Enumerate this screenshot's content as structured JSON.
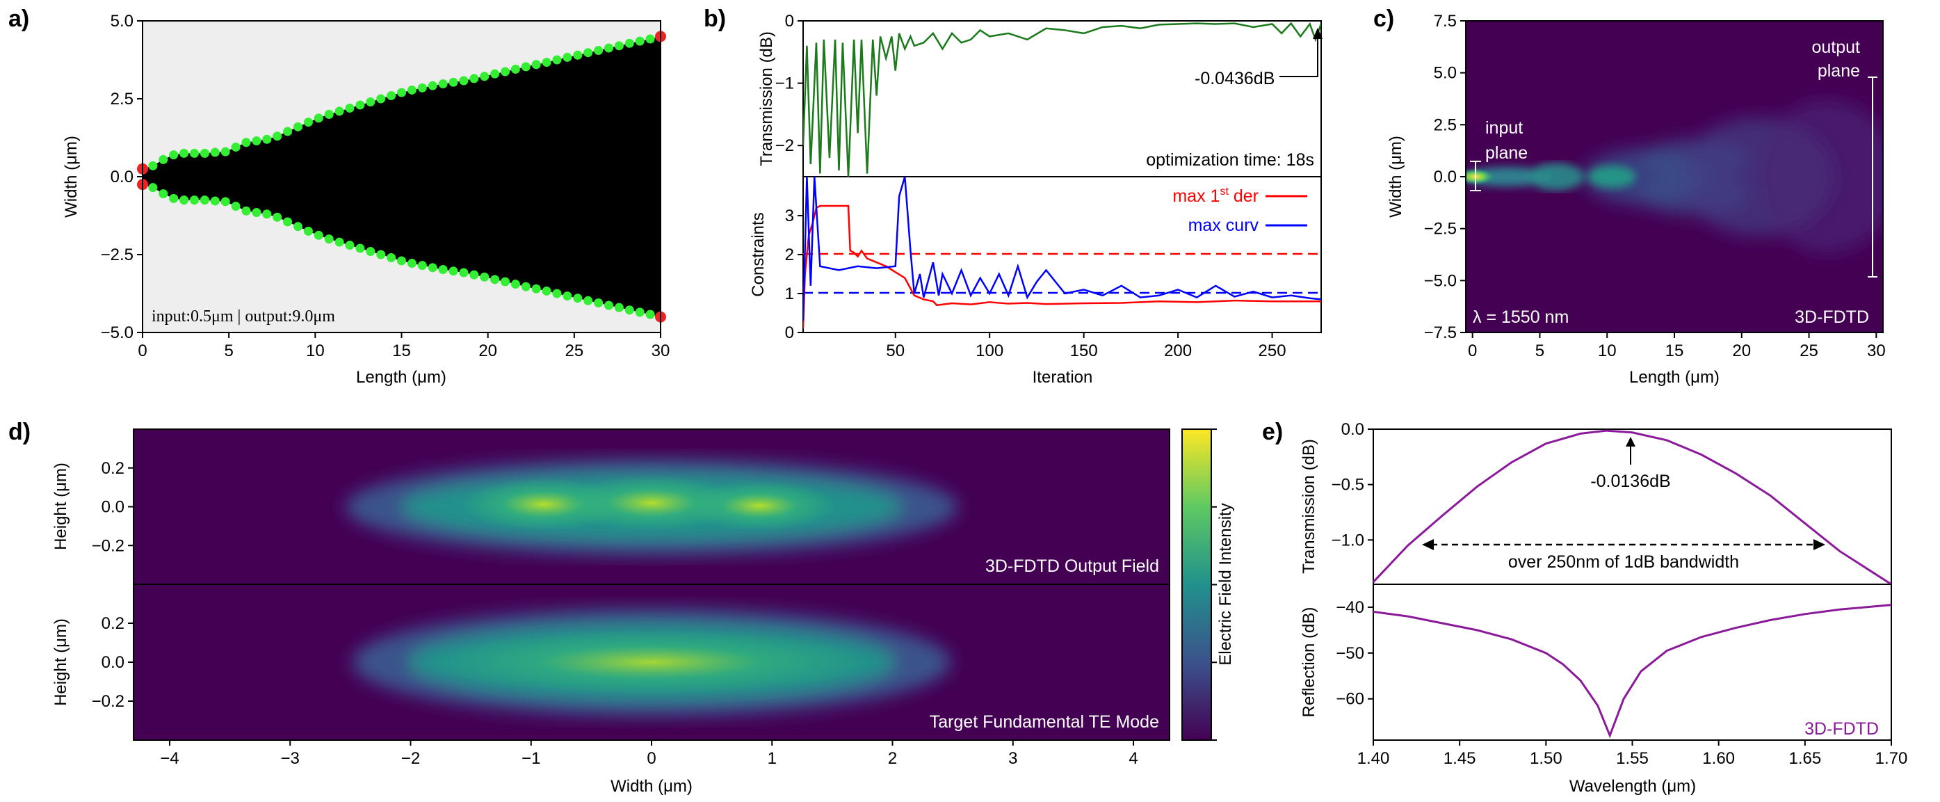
{
  "panels": {
    "a": {
      "letter": "a)",
      "xlabel": "Length (μm)",
      "ylabel": "Width (μm)",
      "xticks": [
        "0",
        "5",
        "10",
        "15",
        "20",
        "25",
        "30"
      ],
      "yticks": [
        "5.0",
        "2.5",
        "0.0",
        "−2.5",
        "−5.0"
      ],
      "annotation": "input:0.5μm | output:9.0μm"
    },
    "b": {
      "letter": "b)",
      "top_ylabel": "Transmission (dB)",
      "top_yticks": [
        "0",
        "−1",
        "−2"
      ],
      "top_annotation": "-0.0436dB",
      "time_label": "optimization time: 18s",
      "bottom_ylabel": "Constraints",
      "bottom_yticks": [
        "3",
        "2",
        "1",
        "0"
      ],
      "legend_der_prefix": "max 1",
      "legend_der_sup": "st",
      "legend_der_suffix": " der",
      "legend_curv": "max curv",
      "xlabel": "Iteration",
      "xticks": [
        "50",
        "100",
        "150",
        "200",
        "250"
      ]
    },
    "c": {
      "letter": "c)",
      "xlabel": "Length (μm)",
      "ylabel": "Width (μm)",
      "xticks": [
        "0",
        "5",
        "10",
        "15",
        "20",
        "25",
        "30"
      ],
      "yticks": [
        "7.5",
        "5.0",
        "2.5",
        "0.0",
        "−2.5",
        "−5.0",
        "−7.5"
      ],
      "input_label_1": "input",
      "input_label_2": "plane",
      "output_label_1": "output",
      "output_label_2": "plane",
      "wavelength_label": "λ = 1550 nm",
      "method_label": "3D-FDTD"
    },
    "d": {
      "letter": "d)",
      "top_label": "3D-FDTD  Output Field",
      "bottom_label": "Target  Fundamental  TE  Mode",
      "ylabel_top": "Height (μm)",
      "ylabel_bottom": "Height (μm)",
      "yticks": [
        "0.2",
        "0.0",
        "−0.2"
      ],
      "xlabel": "Width (μm)",
      "xticks": [
        "−4",
        "−3",
        "−2",
        "−1",
        "0",
        "1",
        "2",
        "3",
        "4"
      ],
      "colorbar_label": "Electric Field Intensity"
    },
    "e": {
      "letter": "e)",
      "top_ylabel": "Transmission (dB)",
      "top_yticks": [
        "0.0",
        "−0.5",
        "−1.0"
      ],
      "peak_annotation": "-0.0136dB",
      "bandwidth_annotation": "over  250nm  of  1dB  bandwidth",
      "bottom_ylabel": "Reflection (dB)",
      "bottom_yticks": [
        "−40",
        "−50",
        "−60"
      ],
      "method_label": "3D-FDTD",
      "xlabel": "Wavelength (μm)",
      "xticks": [
        "1.40",
        "1.45",
        "1.50",
        "1.55",
        "1.60",
        "1.65",
        "1.70"
      ]
    }
  },
  "colors": {
    "taper_fill": "#000000",
    "background_gray": "#eeeeee",
    "control_point": "#33ee33",
    "end_point": "#ee2222",
    "transmission_green": "#1b7a1b",
    "der_red": "#ff0000",
    "curv_blue": "#0000ff",
    "purple": "#8b1a9b",
    "viridis_dark": "#440154",
    "viridis_teal": "#21918c",
    "viridis_yellow": "#fde725"
  },
  "chart_data": [
    {
      "panel": "a",
      "type": "scatter",
      "xlabel": "Length (μm)",
      "ylabel": "Width (μm)",
      "xlim": [
        0,
        30
      ],
      "ylim": [
        -5,
        5
      ],
      "series": [
        {
          "name": "",
          "x": [
            0,
            0.6,
            1.2,
            1.8,
            2.4,
            3.0,
            3.6,
            4.2,
            4.8,
            5.4,
            6.0,
            6.6,
            7.2,
            7.8,
            8.4,
            9.0,
            9.6,
            10.2,
            10.8,
            11.4,
            12.0,
            12.6,
            13.2,
            13.8,
            14.4,
            15.0,
            15.6,
            16.2,
            16.8,
            17.4,
            18.0,
            18.6,
            19.2,
            19.8,
            20.4,
            21.0,
            21.6,
            22.2,
            22.8,
            23.4,
            24.0,
            24.6,
            25.2,
            25.8,
            26.4,
            27.0,
            27.6,
            28.2,
            28.8,
            29.4,
            30.0
          ],
          "y": [
            0.25,
            0.35,
            0.55,
            0.7,
            0.75,
            0.75,
            0.75,
            0.78,
            0.8,
            0.95,
            1.1,
            1.15,
            1.2,
            1.3,
            1.45,
            1.6,
            1.75,
            1.88,
            2.0,
            2.1,
            2.2,
            2.3,
            2.4,
            2.5,
            2.6,
            2.7,
            2.78,
            2.85,
            2.92,
            2.98,
            3.03,
            3.08,
            3.15,
            3.22,
            3.3,
            3.37,
            3.45,
            3.53,
            3.6,
            3.67,
            3.75,
            3.83,
            3.9,
            3.98,
            4.05,
            4.13,
            4.2,
            4.28,
            4.35,
            4.42,
            4.5
          ]
        }
      ]
    },
    {
      "panel": "b-top",
      "type": "line",
      "xlabel": "Iteration",
      "ylabel": "Transmission (dB)",
      "xlim": [
        1,
        276
      ],
      "ylim": [
        -2.5,
        0
      ],
      "series": [
        {
          "name": "",
          "x": [
            1,
            3,
            5,
            8,
            10,
            12,
            15,
            18,
            20,
            22,
            25,
            28,
            30,
            32,
            35,
            38,
            40,
            42,
            45,
            48,
            50,
            52,
            55,
            58,
            60,
            65,
            70,
            75,
            80,
            85,
            90,
            95,
            100,
            110,
            120,
            130,
            140,
            150,
            160,
            170,
            180,
            190,
            200,
            210,
            220,
            230,
            240,
            250,
            255,
            260,
            265,
            270,
            273,
            276
          ],
          "y": [
            -2.0,
            -0.4,
            -2.3,
            -0.35,
            -2.45,
            -0.3,
            -2.2,
            -0.3,
            -2.4,
            -0.35,
            -2.5,
            -0.3,
            -1.8,
            -0.3,
            -2.45,
            -0.3,
            -1.2,
            -0.25,
            -0.6,
            -0.25,
            -0.8,
            -0.2,
            -0.45,
            -0.25,
            -0.4,
            -0.35,
            -0.2,
            -0.45,
            -0.2,
            -0.35,
            -0.3,
            -0.15,
            -0.25,
            -0.2,
            -0.3,
            -0.12,
            -0.15,
            -0.2,
            -0.1,
            -0.08,
            -0.12,
            -0.06,
            -0.05,
            -0.04,
            -0.05,
            -0.04,
            -0.1,
            -0.05,
            -0.2,
            -0.04,
            -0.25,
            -0.05,
            -0.3,
            -0.0436
          ]
        }
      ]
    },
    {
      "panel": "b-bottom",
      "type": "line",
      "xlabel": "Iteration",
      "ylabel": "Constraints",
      "xlim": [
        1,
        276
      ],
      "ylim": [
        0,
        4
      ],
      "series": [
        {
          "name": "max 1st der",
          "x": [
            1,
            2,
            4,
            6,
            8,
            10,
            25,
            26,
            28,
            30,
            32,
            35,
            40,
            45,
            50,
            55,
            60,
            65,
            70,
            72,
            80,
            90,
            100,
            110,
            120,
            130,
            150,
            170,
            190,
            210,
            230,
            250,
            276
          ],
          "y": [
            0.1,
            1.5,
            2.5,
            2.8,
            3.2,
            3.25,
            3.25,
            2.1,
            2.05,
            1.95,
            2.1,
            1.9,
            1.8,
            1.7,
            1.55,
            1.4,
            0.95,
            0.85,
            0.8,
            0.7,
            0.75,
            0.72,
            0.78,
            0.74,
            0.76,
            0.73,
            0.75,
            0.76,
            0.8,
            0.78,
            0.82,
            0.8,
            0.8
          ]
        },
        {
          "name": "max curv",
          "x": [
            1,
            3,
            5,
            7,
            10,
            20,
            30,
            40,
            50,
            52,
            55,
            58,
            60,
            63,
            65,
            70,
            73,
            75,
            80,
            85,
            90,
            95,
            100,
            105,
            110,
            115,
            120,
            125,
            130,
            140,
            150,
            160,
            170,
            180,
            190,
            200,
            210,
            220,
            230,
            240,
            250,
            260,
            270,
            276
          ],
          "y": [
            0.3,
            4.0,
            1.2,
            4.0,
            1.7,
            1.6,
            1.7,
            1.65,
            1.7,
            3.5,
            4.0,
            2.1,
            1.0,
            1.5,
            0.9,
            1.8,
            0.95,
            1.5,
            1.0,
            1.6,
            0.95,
            1.4,
            1.0,
            1.5,
            0.95,
            1.7,
            0.9,
            1.3,
            1.6,
            1.0,
            1.1,
            0.95,
            1.2,
            0.9,
            0.95,
            1.1,
            0.9,
            1.2,
            0.92,
            1.05,
            0.9,
            0.95,
            0.88,
            0.85
          ]
        }
      ],
      "reference_lines": {
        "der_limit": 2,
        "curv_limit": 1
      }
    },
    {
      "panel": "c",
      "type": "heatmap",
      "xlabel": "Length (μm)",
      "ylabel": "Width (μm)",
      "xlim": [
        -0.5,
        30.5
      ],
      "ylim": [
        -7.5,
        7.5
      ]
    },
    {
      "panel": "d",
      "type": "heatmap",
      "xlabel": "Width (μm)",
      "ylabel": "Height (μm)",
      "xlim": [
        -4.3,
        4.3
      ],
      "ylim": [
        -0.4,
        0.4
      ]
    },
    {
      "panel": "e-top",
      "type": "line",
      "xlabel": "Wavelength (μm)",
      "ylabel": "Transmission (dB)",
      "xlim": [
        1.4,
        1.7
      ],
      "ylim": [
        -1.4,
        0
      ],
      "series": [
        {
          "name": "",
          "x": [
            1.4,
            1.42,
            1.44,
            1.46,
            1.48,
            1.5,
            1.52,
            1.535,
            1.55,
            1.57,
            1.59,
            1.61,
            1.63,
            1.65,
            1.67,
            1.69,
            1.7
          ],
          "y": [
            -1.38,
            -1.05,
            -0.78,
            -0.52,
            -0.3,
            -0.13,
            -0.04,
            -0.0136,
            -0.03,
            -0.1,
            -0.23,
            -0.4,
            -0.6,
            -0.85,
            -1.1,
            -1.3,
            -1.4
          ]
        }
      ]
    },
    {
      "panel": "e-bottom",
      "type": "line",
      "xlabel": "Wavelength (μm)",
      "ylabel": "Reflection (dB)",
      "xlim": [
        1.4,
        1.7
      ],
      "ylim": [
        -69,
        -35
      ],
      "series": [
        {
          "name": "3D-FDTD",
          "x": [
            1.4,
            1.42,
            1.44,
            1.46,
            1.48,
            1.5,
            1.51,
            1.52,
            1.53,
            1.537,
            1.545,
            1.555,
            1.57,
            1.59,
            1.61,
            1.63,
            1.65,
            1.67,
            1.7
          ],
          "y": [
            -41,
            -42,
            -43.5,
            -45,
            -47,
            -50,
            -52.5,
            -56,
            -61.5,
            -68,
            -60,
            -54,
            -49.5,
            -46.5,
            -44.5,
            -42.8,
            -41.5,
            -40.5,
            -39.5
          ]
        }
      ]
    }
  ]
}
